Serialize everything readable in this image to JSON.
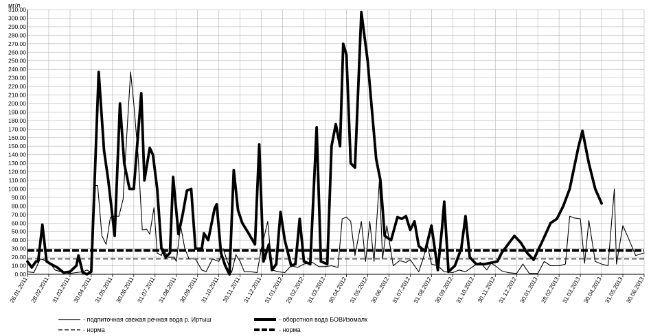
{
  "chart_data": {
    "type": "line",
    "ylabel": "мг/л",
    "ylim": [
      0,
      310
    ],
    "yticks": [
      0,
      10,
      20,
      30,
      40,
      50,
      60,
      70,
      80,
      90,
      100,
      110,
      120,
      130,
      140,
      150,
      160,
      170,
      180,
      190,
      200,
      210,
      220,
      230,
      240,
      250,
      260,
      270,
      280,
      290,
      300,
      310
    ],
    "ytick_labels": [
      "0.00",
      "10.00",
      "20.00",
      "30.00",
      "40.00",
      "50.00",
      "60.00",
      "70.00",
      "80.00",
      "90.00",
      "100.00",
      "110.00",
      "120.00",
      "130.00",
      "140.00",
      "150.00",
      "160.00",
      "170.00",
      "180.00",
      "190.00",
      "200.00",
      "210.00",
      "220.00",
      "230.00",
      "240.00",
      "250.00",
      "260.00",
      "270.00",
      "280.00",
      "290.00",
      "300.00",
      "310.00"
    ],
    "xticks": [
      "26.01.2011",
      "28.02.2011",
      "31.03.2011",
      "30.04.2011",
      "31.05.2011",
      "30.06.2011",
      "31.07.2011",
      "31.08.2011",
      "30.09.2011",
      "31.10.2011",
      "30.11.2011",
      "31.12.2011",
      "31.01.2012",
      "29.02.2012",
      "31.03.2012",
      "30.04.2012",
      "31.05.2012",
      "30.06.2012",
      "31.07.2012",
      "31.08.2012",
      "30.09.2012",
      "31.10.2012",
      "30.11.2012",
      "31.12.2012",
      "30.01.2013",
      "28.02.2013",
      "31.03.2013",
      "30.04.2013",
      "31.05.2013",
      "30.06.2013"
    ],
    "x_range": [
      0,
      29
    ],
    "grid": true,
    "series": [
      {
        "name": "- подпиточная свежая речная вода р. Иртыш",
        "style": "thin",
        "points": [
          [
            0,
            3
          ],
          [
            0.3,
            2
          ],
          [
            0.6,
            18
          ],
          [
            1,
            15
          ],
          [
            1.3,
            5
          ],
          [
            1.7,
            2
          ],
          [
            2,
            1
          ],
          [
            2.3,
            2
          ],
          [
            2.6,
            3
          ],
          [
            2.8,
            5
          ],
          [
            3,
            2
          ],
          [
            3.2,
            104
          ],
          [
            3.3,
            104
          ],
          [
            3.5,
            45
          ],
          [
            3.7,
            35
          ],
          [
            3.9,
            67
          ],
          [
            4.1,
            68
          ],
          [
            4.3,
            68
          ],
          [
            4.5,
            88
          ],
          [
            4.7,
            175
          ],
          [
            4.85,
            237
          ],
          [
            5,
            200
          ],
          [
            5.2,
            140
          ],
          [
            5.4,
            52
          ],
          [
            5.6,
            53
          ],
          [
            5.75,
            47
          ],
          [
            5.95,
            78
          ],
          [
            6.1,
            25
          ],
          [
            6.3,
            22
          ],
          [
            6.4,
            30
          ],
          [
            6.6,
            20
          ],
          [
            6.9,
            20
          ],
          [
            7,
            15
          ],
          [
            7.2,
            57
          ],
          [
            7.4,
            30
          ],
          [
            7.6,
            18
          ],
          [
            7.9,
            18
          ],
          [
            8.2,
            5
          ],
          [
            8.4,
            3
          ],
          [
            8.7,
            18
          ],
          [
            9,
            15
          ],
          [
            9.2,
            30
          ],
          [
            9.4,
            15
          ],
          [
            9.6,
            2
          ],
          [
            9.8,
            23
          ],
          [
            10,
            15
          ],
          [
            10.2,
            3
          ],
          [
            10.5,
            3
          ],
          [
            10.8,
            2
          ],
          [
            11,
            30
          ],
          [
            11.3,
            62
          ],
          [
            11.5,
            5
          ],
          [
            11.8,
            3
          ],
          [
            12.1,
            2
          ],
          [
            12.4,
            10
          ],
          [
            12.7,
            8
          ],
          [
            13,
            12
          ],
          [
            13.4,
            14
          ],
          [
            13.7,
            9
          ],
          [
            14,
            9
          ],
          [
            14.3,
            10
          ],
          [
            14.6,
            8
          ],
          [
            14.8,
            65
          ],
          [
            15,
            67
          ],
          [
            15.2,
            62
          ],
          [
            15.4,
            22
          ],
          [
            15.7,
            62
          ],
          [
            15.9,
            15
          ],
          [
            16.1,
            62
          ],
          [
            16.3,
            15
          ],
          [
            16.55,
            110
          ],
          [
            16.7,
            18
          ],
          [
            16.9,
            57
          ],
          [
            17.2,
            10
          ],
          [
            17.5,
            16
          ],
          [
            17.8,
            14
          ],
          [
            18,
            17
          ],
          [
            18.4,
            3
          ],
          [
            18.6,
            18
          ],
          [
            18.8,
            35
          ],
          [
            19,
            12
          ],
          [
            19.3,
            10
          ],
          [
            19.6,
            3
          ],
          [
            20,
            2
          ],
          [
            20.3,
            5
          ],
          [
            20.6,
            3
          ],
          [
            21,
            10
          ],
          [
            21.3,
            14
          ],
          [
            21.6,
            5
          ],
          [
            21.8,
            13
          ],
          [
            22,
            10
          ],
          [
            22.3,
            4
          ],
          [
            22.6,
            2
          ],
          [
            23,
            1
          ],
          [
            23.3,
            12
          ],
          [
            23.6,
            1
          ],
          [
            24,
            1
          ],
          [
            24.3,
            15
          ],
          [
            24.6,
            10
          ],
          [
            25,
            10
          ],
          [
            25.3,
            12
          ],
          [
            25.5,
            68
          ],
          [
            25.7,
            66
          ],
          [
            26,
            65
          ],
          [
            26.2,
            13
          ],
          [
            26.4,
            63
          ],
          [
            26.7,
            15
          ],
          [
            27,
            12
          ],
          [
            27.3,
            10
          ],
          [
            27.6,
            100
          ],
          [
            27.7,
            12
          ],
          [
            28,
            57
          ],
          [
            28.3,
            40
          ],
          [
            28.6,
            22
          ],
          [
            29,
            25
          ]
        ]
      },
      {
        "name": "- оборотноя вода БОВИзомалк",
        "style": "bold",
        "points": [
          [
            0,
            15
          ],
          [
            0.2,
            8
          ],
          [
            0.4,
            15
          ],
          [
            0.5,
            15
          ],
          [
            0.7,
            58
          ],
          [
            0.9,
            15
          ],
          [
            1.1,
            12
          ],
          [
            1.4,
            8
          ],
          [
            1.7,
            2
          ],
          [
            2,
            3
          ],
          [
            2.3,
            10
          ],
          [
            2.4,
            22
          ],
          [
            2.6,
            2
          ],
          [
            2.8,
            0
          ],
          [
            3,
            3
          ],
          [
            3.35,
            237
          ],
          [
            3.6,
            145
          ],
          [
            3.8,
            110
          ],
          [
            4.1,
            45
          ],
          [
            4.35,
            200
          ],
          [
            4.55,
            130
          ],
          [
            4.8,
            100
          ],
          [
            5,
            100
          ],
          [
            5.35,
            212
          ],
          [
            5.5,
            110
          ],
          [
            5.75,
            148
          ],
          [
            5.9,
            140
          ],
          [
            6.1,
            100
          ],
          [
            6.3,
            30
          ],
          [
            6.5,
            20
          ],
          [
            6.7,
            25
          ],
          [
            6.85,
            114
          ],
          [
            7.1,
            47
          ],
          [
            7.3,
            70
          ],
          [
            7.5,
            98
          ],
          [
            7.7,
            100
          ],
          [
            7.9,
            30
          ],
          [
            8.2,
            30
          ],
          [
            8.3,
            48
          ],
          [
            8.5,
            40
          ],
          [
            8.8,
            77
          ],
          [
            8.9,
            82
          ],
          [
            9.1,
            25
          ],
          [
            9.3,
            10
          ],
          [
            9.5,
            0
          ],
          [
            9.7,
            122
          ],
          [
            9.9,
            75
          ],
          [
            10.1,
            60
          ],
          [
            10.4,
            48
          ],
          [
            10.7,
            35
          ],
          [
            10.9,
            152
          ],
          [
            11.1,
            15
          ],
          [
            11.35,
            35
          ],
          [
            11.5,
            5
          ],
          [
            11.7,
            12
          ],
          [
            11.9,
            73
          ],
          [
            12.1,
            40
          ],
          [
            12.4,
            10
          ],
          [
            12.6,
            12
          ],
          [
            12.8,
            65
          ],
          [
            13,
            15
          ],
          [
            13.3,
            12
          ],
          [
            13.6,
            172
          ],
          [
            13.8,
            15
          ],
          [
            14.1,
            12
          ],
          [
            14.3,
            150
          ],
          [
            14.5,
            176
          ],
          [
            14.7,
            150
          ],
          [
            14.85,
            270
          ],
          [
            15,
            257
          ],
          [
            15.2,
            130
          ],
          [
            15.4,
            125
          ],
          [
            15.7,
            307
          ],
          [
            16,
            250
          ],
          [
            16.4,
            135
          ],
          [
            16.6,
            110
          ],
          [
            16.8,
            45
          ],
          [
            17.1,
            40
          ],
          [
            17.4,
            67
          ],
          [
            17.6,
            65
          ],
          [
            17.8,
            68
          ],
          [
            18,
            52
          ],
          [
            18.2,
            62
          ],
          [
            18.4,
            33
          ],
          [
            18.7,
            27
          ],
          [
            19,
            57
          ],
          [
            19.3,
            5
          ],
          [
            19.5,
            55
          ],
          [
            19.6,
            85
          ],
          [
            19.8,
            3
          ],
          [
            20.1,
            10
          ],
          [
            20.4,
            30
          ],
          [
            20.6,
            68
          ],
          [
            20.8,
            20
          ],
          [
            21.1,
            12
          ],
          [
            21.5,
            12
          ],
          [
            22.1,
            15
          ],
          [
            22.3,
            25
          ],
          [
            22.6,
            35
          ],
          [
            22.9,
            45
          ],
          [
            23.2,
            37
          ],
          [
            23.5,
            25
          ],
          [
            23.8,
            17
          ],
          [
            24.2,
            38
          ],
          [
            24.6,
            60
          ],
          [
            24.9,
            65
          ],
          [
            25.2,
            80
          ],
          [
            25.5,
            100
          ],
          [
            25.9,
            148
          ],
          [
            26.1,
            168
          ],
          [
            26.4,
            130
          ],
          [
            26.7,
            100
          ],
          [
            27,
            83
          ]
        ]
      },
      {
        "name": "- норма",
        "style": "dashed",
        "points": [
          [
            0,
            18
          ],
          [
            29,
            18
          ]
        ]
      },
      {
        "name": "- норма",
        "style": "bold-dashed",
        "points": [
          [
            0,
            28
          ],
          [
            29,
            28
          ]
        ]
      }
    ]
  }
}
